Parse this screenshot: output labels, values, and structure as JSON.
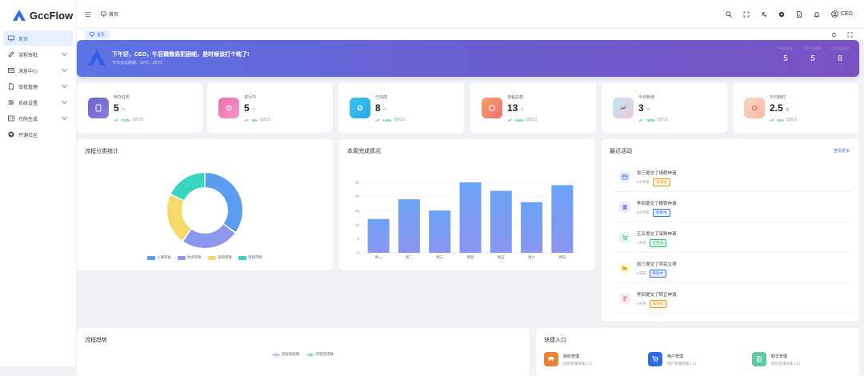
{
  "app": {
    "name": "GccFlow"
  },
  "sidebar": {
    "items": [
      {
        "label": "首页",
        "icon": "monitor-icon",
        "active": true
      },
      {
        "label": "流程审批",
        "icon": "edit-icon"
      },
      {
        "label": "消息中心",
        "icon": "mail-icon"
      },
      {
        "label": "审批管理",
        "icon": "document-icon"
      },
      {
        "label": "系统设置",
        "icon": "sliders-icon"
      },
      {
        "label": "代码生成",
        "icon": "code-icon"
      },
      {
        "label": "开源社区",
        "icon": "github-icon"
      }
    ]
  },
  "topbar": {
    "breadcrumb": "首页",
    "user": "CEO"
  },
  "tabs": [
    {
      "label": "首页"
    }
  ],
  "banner": {
    "greeting": "下午好，CEO，午后微微易犯困呢，是时候该打个盹了!",
    "weather": "今日多云转晴，20°C - 25°C!",
    "stats": [
      {
        "label": "待办任务",
        "value": "5"
      },
      {
        "label": "进行中流程",
        "value": "5"
      },
      {
        "label": "已完成流程",
        "value": "8"
      }
    ]
  },
  "cards": [
    {
      "label": "待办任务",
      "value": "5",
      "unit": "个",
      "change": "+12%",
      "note": "较昨日",
      "color1": "#6c63c9",
      "color2": "#8a7ee0"
    },
    {
      "label": "进行中",
      "value": "5",
      "unit": "个",
      "change": "-8%",
      "note": "较昨日",
      "color1": "#f06aa8",
      "color2": "#f49acb"
    },
    {
      "label": "已完成",
      "value": "8",
      "unit": "个",
      "change": "+25%",
      "note": "较昨日",
      "color1": "#3ec6f2",
      "color2": "#26a6e8"
    },
    {
      "label": "流程总数",
      "value": "13",
      "unit": "个",
      "change": "+15%",
      "note": "较昨日",
      "color1": "#f5a063",
      "color2": "#ef6e7a"
    },
    {
      "label": "今日新增",
      "value": "3",
      "unit": "个",
      "change": "+20%",
      "note": "较昨日",
      "color1": "#b7e6ef",
      "color2": "#f2c9d6"
    },
    {
      "label": "平均耗时",
      "value": "2.5",
      "unit": "天",
      "change": "10%",
      "note": "较昨日",
      "color1": "#fcd6c4",
      "color2": "#f7b9a2"
    }
  ],
  "pie_panel": {
    "title": "流程分类统计"
  },
  "bar_panel": {
    "title": "本周完成情况"
  },
  "activity": {
    "title": "最近活动",
    "more": "查看更多",
    "items": [
      {
        "title": "张三提交了请假申请",
        "time": "2小时前",
        "status": "待审批",
        "icon": "calendar-icon",
        "color": "#e8f0ff",
        "ic": "#3a6df0",
        "tagbg": "#fff4e0",
        "tagc": "#e69a1a"
      },
      {
        "title": "李四提交了报销申请",
        "time": "5小时前",
        "status": "审批中",
        "icon": "receipt-icon",
        "color": "#eeeaff",
        "ic": "#7a6ce0",
        "tagbg": "#e8efff",
        "tagc": "#3a6df0"
      },
      {
        "title": "王五提交了采购申请",
        "time": "1天前",
        "status": "已完成",
        "icon": "cart-icon",
        "color": "#e6f8ee",
        "ic": "#2cbf6a",
        "tagbg": "#e6f8ee",
        "tagc": "#2cbf6a"
      },
      {
        "title": "张三提交了项目立项",
        "time": "2天前",
        "status": "审批中",
        "icon": "folder-icon",
        "color": "#fff6e0",
        "ic": "#e6b21a",
        "tagbg": "#e8efff",
        "tagc": "#3a6df0"
      },
      {
        "title": "李四提交了转正申请",
        "time": "3天前",
        "status": "待审批",
        "icon": "user-up-icon",
        "color": "#ffecef",
        "ic": "#ef5a7a",
        "tagbg": "#fff4e0",
        "tagc": "#e69a1a"
      }
    ]
  },
  "trend": {
    "title": "流程趋势",
    "legend": [
      "流程发起数",
      "流程完成数"
    ]
  },
  "quick": {
    "title": "快捷入口",
    "items": [
      {
        "title": "组织管理",
        "sub": "组织管理快捷入口",
        "color": "#e8843a",
        "icon": "car-icon"
      },
      {
        "title": "用户管理",
        "sub": "用户管理快捷入口",
        "color": "#2f6be6",
        "icon": "cart-icon"
      },
      {
        "title": "职位管理",
        "sub": "职位管理快捷入口",
        "color": "#5cc9a8",
        "icon": "document-icon"
      }
    ]
  },
  "chart_data": [
    {
      "type": "pie",
      "categories": [
        "人事审批",
        "财务审批",
        "采购审批",
        "项目审批"
      ],
      "values": [
        35,
        25,
        22,
        18
      ],
      "colors": [
        "#5b9bf0",
        "#8e97f0",
        "#f7d96a",
        "#38d4c0"
      ],
      "legend": "bottom"
    },
    {
      "type": "bar",
      "categories": [
        "周一",
        "周二",
        "周三",
        "周四",
        "周五",
        "周六",
        "周日"
      ],
      "values": [
        12,
        19,
        15,
        25,
        22,
        18,
        24
      ],
      "ylim": [
        0,
        25
      ],
      "yticks": [
        0,
        5,
        10,
        15,
        20,
        25
      ],
      "grid": true
    }
  ]
}
